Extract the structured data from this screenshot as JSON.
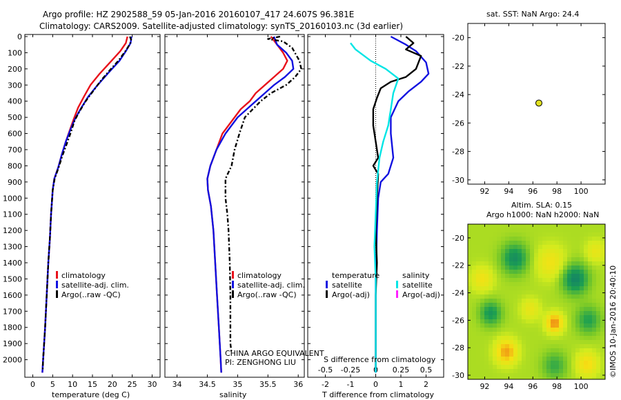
{
  "title": {
    "line1": "Argo profile: HZ 2902588_59 05-Jan-2016 20160107_417 24.607S 96.381E",
    "line2": "Climatology: CARS2009. Satellite-adjusted climatology: synTS_20160103.nc (3d earlier)"
  },
  "depth_ticks": [
    "0",
    "100",
    "200",
    "300",
    "400",
    "500",
    "600",
    "700",
    "800",
    "900",
    "1000",
    "1100",
    "1200",
    "1300",
    "1400",
    "1500",
    "1600",
    "1700",
    "1800",
    "1900",
    "2000"
  ],
  "colors": {
    "climatology": "#e8111b",
    "satellite": "#1111e0",
    "argo": "#000000",
    "argo_salinity": "#00e5e5",
    "argo_adj_salinity": "#ff22ff",
    "float_marker": "#e0e020"
  },
  "legend": {
    "climatology": "climatology",
    "satellite_adj": "satellite-adj. clim.",
    "argo_raw": "Argo(..raw -QC)",
    "temperature_head": "temperature",
    "salinity_head": "salinity",
    "satellite": "satellite",
    "argo_adj": "Argo(-adj)"
  },
  "annotations": {
    "institution": "CHINA ARGO EQUIVALENT",
    "pi": "PI: ZENGHONG LIU"
  },
  "sst_title": "sat. SST: NaN Argo: 24.4",
  "sla_title1": "Altim. SLA: 0.15",
  "sla_title2": "Argo h1000: NaN h2000: NaN",
  "footer_stamp": "©IMOS 10-Jan-2016 20:40:10",
  "chart_data": [
    {
      "name": "temperature",
      "type": "line",
      "xlabel": "temperature (deg C)",
      "ylabel": "",
      "xlim": [
        -2,
        32
      ],
      "ylim": [
        2100,
        0
      ],
      "xticks": [
        "0",
        "5",
        "10",
        "15",
        "20",
        "25",
        "30"
      ],
      "series": [
        {
          "name": "climatology",
          "color": "#e8111b",
          "style": "solid",
          "points": [
            [
              23.8,
              0
            ],
            [
              23.4,
              40
            ],
            [
              22,
              90
            ],
            [
              19.8,
              150
            ],
            [
              16.8,
              230
            ],
            [
              14.5,
              300
            ],
            [
              12.9,
              370
            ],
            [
              11.4,
              440
            ],
            [
              10.3,
              510
            ],
            [
              9.3,
              580
            ],
            [
              8.3,
              650
            ],
            [
              7.3,
              730
            ],
            [
              6.4,
              810
            ],
            [
              5.4,
              880
            ],
            [
              5,
              950
            ],
            [
              4.6,
              1100
            ],
            [
              4.3,
              1250
            ],
            [
              3.9,
              1400
            ],
            [
              3.5,
              1600
            ],
            [
              3.1,
              1800
            ],
            [
              2.6,
              2000
            ],
            [
              2.4,
              2080
            ]
          ]
        },
        {
          "name": "satellite-adj. clim.",
          "color": "#1111e0",
          "style": "solid",
          "points": [
            [
              24.8,
              0
            ],
            [
              24.6,
              40
            ],
            [
              23.4,
              90
            ],
            [
              21.8,
              150
            ],
            [
              18.8,
              230
            ],
            [
              16.3,
              300
            ],
            [
              14,
              370
            ],
            [
              12.2,
              440
            ],
            [
              10.6,
              510
            ],
            [
              9.4,
              580
            ],
            [
              8.3,
              650
            ],
            [
              7.3,
              730
            ],
            [
              6.4,
              810
            ],
            [
              5.4,
              880
            ],
            [
              5,
              950
            ],
            [
              4.6,
              1100
            ],
            [
              4.3,
              1250
            ],
            [
              3.9,
              1400
            ],
            [
              3.5,
              1600
            ],
            [
              3.1,
              1800
            ],
            [
              2.6,
              2000
            ],
            [
              2.4,
              2080
            ]
          ]
        },
        {
          "name": "Argo(..raw -QC)",
          "color": "#000000",
          "style": "dashdot",
          "points": [
            [
              24.4,
              0
            ],
            [
              24.8,
              25
            ],
            [
              24.2,
              55
            ],
            [
              23.3,
              90
            ],
            [
              21.5,
              150
            ],
            [
              19.3,
              210
            ],
            [
              17.2,
              270
            ],
            [
              15.4,
              330
            ],
            [
              13.3,
              400
            ],
            [
              11.8,
              460
            ],
            [
              10.5,
              520
            ],
            [
              9.6,
              590
            ],
            [
              8.6,
              660
            ],
            [
              7.4,
              740
            ],
            [
              6.5,
              810
            ],
            [
              5.5,
              880
            ],
            [
              5,
              950
            ],
            [
              4.6,
              1100
            ],
            [
              4.3,
              1250
            ],
            [
              3.9,
              1400
            ],
            [
              3.5,
              1600
            ],
            [
              3.1,
              1800
            ],
            [
              2.6,
              2000
            ],
            [
              2.5,
              2060
            ]
          ]
        }
      ]
    },
    {
      "name": "salinity",
      "type": "line",
      "xlabel": "salinity",
      "ylabel": "",
      "xlim": [
        33.8,
        36.1
      ],
      "ylim": [
        2100,
        0
      ],
      "xticks": [
        "34",
        "34.5",
        "35",
        "35.5",
        "36"
      ],
      "series": [
        {
          "name": "climatology",
          "color": "#e8111b",
          "style": "solid",
          "points": [
            [
              35.55,
              0
            ],
            [
              35.65,
              50
            ],
            [
              35.75,
              100
            ],
            [
              35.82,
              150
            ],
            [
              35.75,
              200
            ],
            [
              35.6,
              250
            ],
            [
              35.45,
              300
            ],
            [
              35.3,
              350
            ],
            [
              35.2,
              400
            ],
            [
              35.05,
              450
            ],
            [
              34.95,
              500
            ],
            [
              34.85,
              550
            ],
            [
              34.75,
              600
            ],
            [
              34.65,
              700
            ],
            [
              34.55,
              800
            ],
            [
              34.5,
              880
            ],
            [
              34.51,
              950
            ],
            [
              34.56,
              1050
            ],
            [
              34.6,
              1200
            ],
            [
              34.63,
              1400
            ],
            [
              34.66,
              1600
            ],
            [
              34.69,
              1800
            ],
            [
              34.72,
              2000
            ],
            [
              34.73,
              2080
            ]
          ]
        },
        {
          "name": "satellite-adj. clim.",
          "color": "#1111e0",
          "style": "solid",
          "points": [
            [
              35.6,
              0
            ],
            [
              35.65,
              50
            ],
            [
              35.8,
              100
            ],
            [
              35.9,
              150
            ],
            [
              35.92,
              200
            ],
            [
              35.78,
              250
            ],
            [
              35.6,
              300
            ],
            [
              35.45,
              350
            ],
            [
              35.3,
              400
            ],
            [
              35.15,
              450
            ],
            [
              35,
              500
            ],
            [
              34.9,
              550
            ],
            [
              34.8,
              600
            ],
            [
              34.65,
              700
            ],
            [
              34.55,
              800
            ],
            [
              34.5,
              880
            ],
            [
              34.51,
              950
            ],
            [
              34.56,
              1050
            ],
            [
              34.6,
              1200
            ],
            [
              34.63,
              1400
            ],
            [
              34.66,
              1600
            ],
            [
              34.69,
              1800
            ],
            [
              34.72,
              2000
            ],
            [
              34.73,
              2080
            ]
          ]
        },
        {
          "name": "Argo(..raw -QC)",
          "color": "#000000",
          "style": "dashdot",
          "points": [
            [
              35.7,
              0
            ],
            [
              35.5,
              15
            ],
            [
              35.75,
              30
            ],
            [
              35.9,
              70
            ],
            [
              36.02,
              150
            ],
            [
              36.05,
              200
            ],
            [
              35.95,
              250
            ],
            [
              35.8,
              300
            ],
            [
              35.55,
              350
            ],
            [
              35.38,
              400
            ],
            [
              35.25,
              450
            ],
            [
              35.12,
              500
            ],
            [
              35.03,
              600
            ],
            [
              34.95,
              700
            ],
            [
              34.9,
              800
            ],
            [
              34.8,
              880
            ],
            [
              34.8,
              1000
            ],
            [
              34.83,
              1100
            ],
            [
              34.85,
              1200
            ],
            [
              34.87,
              1400
            ],
            [
              34.88,
              1600
            ],
            [
              34.88,
              1800
            ],
            [
              34.88,
              1900
            ],
            [
              34.9,
              1960
            ]
          ]
        }
      ]
    },
    {
      "name": "difference from climatology",
      "type": "line",
      "xlabel": "T difference from climatology",
      "xlabel2": "S difference from climatology",
      "ylabel": "",
      "xlim": [
        -2.7,
        2.7
      ],
      "ylim": [
        2100,
        0
      ],
      "xticks": [
        "-2",
        "-1",
        "0",
        "1",
        "2"
      ],
      "xticks2": [
        "-0.5",
        "-0.25",
        "0",
        "0.25",
        "0.5"
      ],
      "zero_line": 0,
      "series": [
        {
          "name": "temperature satellite",
          "color": "#1111e0",
          "style": "solid",
          "points": [
            [
              0.6,
              0
            ],
            [
              1.2,
              50
            ],
            [
              1.6,
              90
            ],
            [
              2.0,
              160
            ],
            [
              2.1,
              230
            ],
            [
              1.8,
              280
            ],
            [
              1.3,
              340
            ],
            [
              0.9,
              400
            ],
            [
              0.6,
              500
            ],
            [
              0.6,
              600
            ],
            [
              0.7,
              750
            ],
            [
              0.5,
              850
            ],
            [
              0.2,
              900
            ],
            [
              0.1,
              1000
            ],
            [
              0.05,
              1200
            ],
            [
              0,
              1500
            ],
            [
              0,
              2000
            ],
            [
              0,
              2080
            ]
          ]
        },
        {
          "name": "temperature Argo(-adj)",
          "color": "#000000",
          "style": "solid",
          "points": [
            [
              1.2,
              0
            ],
            [
              1.5,
              40
            ],
            [
              1.2,
              80
            ],
            [
              1.8,
              120
            ],
            [
              1.6,
              200
            ],
            [
              1.2,
              250
            ],
            [
              0.6,
              280
            ],
            [
              0.2,
              320
            ],
            [
              0.05,
              380
            ],
            [
              -0.1,
              450
            ],
            [
              -0.1,
              550
            ],
            [
              0,
              650
            ],
            [
              0.1,
              750
            ],
            [
              -0.1,
              800
            ],
            [
              0.1,
              850
            ],
            [
              0.05,
              1000
            ],
            [
              0,
              1200
            ],
            [
              0.05,
              1400
            ],
            [
              0,
              1600
            ],
            [
              0,
              2000
            ],
            [
              0,
              2060
            ]
          ]
        },
        {
          "name": "salinity satellite",
          "color": "#00e5e5",
          "style": "solid",
          "points": [
            [
              -1.0,
              40
            ],
            [
              -0.8,
              80
            ],
            [
              -0.2,
              150
            ],
            [
              0.4,
              200
            ],
            [
              0.9,
              260
            ],
            [
              0.7,
              350
            ],
            [
              0.6,
              450
            ],
            [
              0.5,
              550
            ],
            [
              0.3,
              650
            ],
            [
              0.15,
              750
            ],
            [
              0.05,
              900
            ],
            [
              0,
              1100
            ],
            [
              -0.05,
              1300
            ],
            [
              0,
              1500
            ],
            [
              0,
              2000
            ],
            [
              0,
              2080
            ]
          ]
        },
        {
          "name": "salinity Argo(-adj)",
          "color": "#ff22ff",
          "style": "solid",
          "points": []
        }
      ]
    },
    {
      "name": "location",
      "type": "scatter",
      "title": "sat. SST: NaN Argo: 24.4",
      "xlim": [
        90.6,
        102
      ],
      "ylim": [
        -30.3,
        -19
      ],
      "xticks": [
        "92",
        "94",
        "96",
        "98",
        "100"
      ],
      "yticks": [
        "-20",
        "-22",
        "-24",
        "-26",
        "-28",
        "-30"
      ],
      "points": [
        [
          96.5,
          -24.6
        ]
      ]
    },
    {
      "name": "sea level anomaly",
      "type": "heatmap",
      "title": "Altim. SLA: 0.15",
      "subtitle": "Argo h1000: NaN h2000: NaN",
      "xlim": [
        90.6,
        102
      ],
      "ylim": [
        -30.3,
        -19
      ],
      "xticks": [
        "92",
        "94",
        "96",
        "98",
        "100"
      ],
      "yticks": [
        "-20",
        "-22",
        "-24",
        "-26",
        "-28",
        "-30"
      ],
      "blobs": [
        {
          "x": 94.5,
          "y": -21.5,
          "v": -0.8,
          "r": 1.1
        },
        {
          "x": 99.5,
          "y": -23.0,
          "v": -0.9,
          "r": 1.1
        },
        {
          "x": 100.6,
          "y": -26.0,
          "v": -0.6,
          "r": 1.0
        },
        {
          "x": 92.5,
          "y": -25.5,
          "v": -0.7,
          "r": 0.9
        },
        {
          "x": 97.8,
          "y": -29.3,
          "v": -0.5,
          "r": 1.0
        },
        {
          "x": 93.8,
          "y": -28.3,
          "v": 0.9,
          "r": 0.9
        },
        {
          "x": 97.8,
          "y": -26.2,
          "v": 1.0,
          "r": 0.7
        },
        {
          "x": 97.5,
          "y": -21.8,
          "v": 0.5,
          "r": 1.2
        },
        {
          "x": 91.8,
          "y": -23.0,
          "v": 0.5,
          "r": 0.9
        },
        {
          "x": 100.5,
          "y": -29.2,
          "v": 0.6,
          "r": 0.9
        },
        {
          "x": 95.8,
          "y": -25.2,
          "v": 0.4,
          "r": 0.8
        },
        {
          "x": 101.2,
          "y": -21.0,
          "v": 0.4,
          "r": 0.8
        }
      ]
    }
  ]
}
